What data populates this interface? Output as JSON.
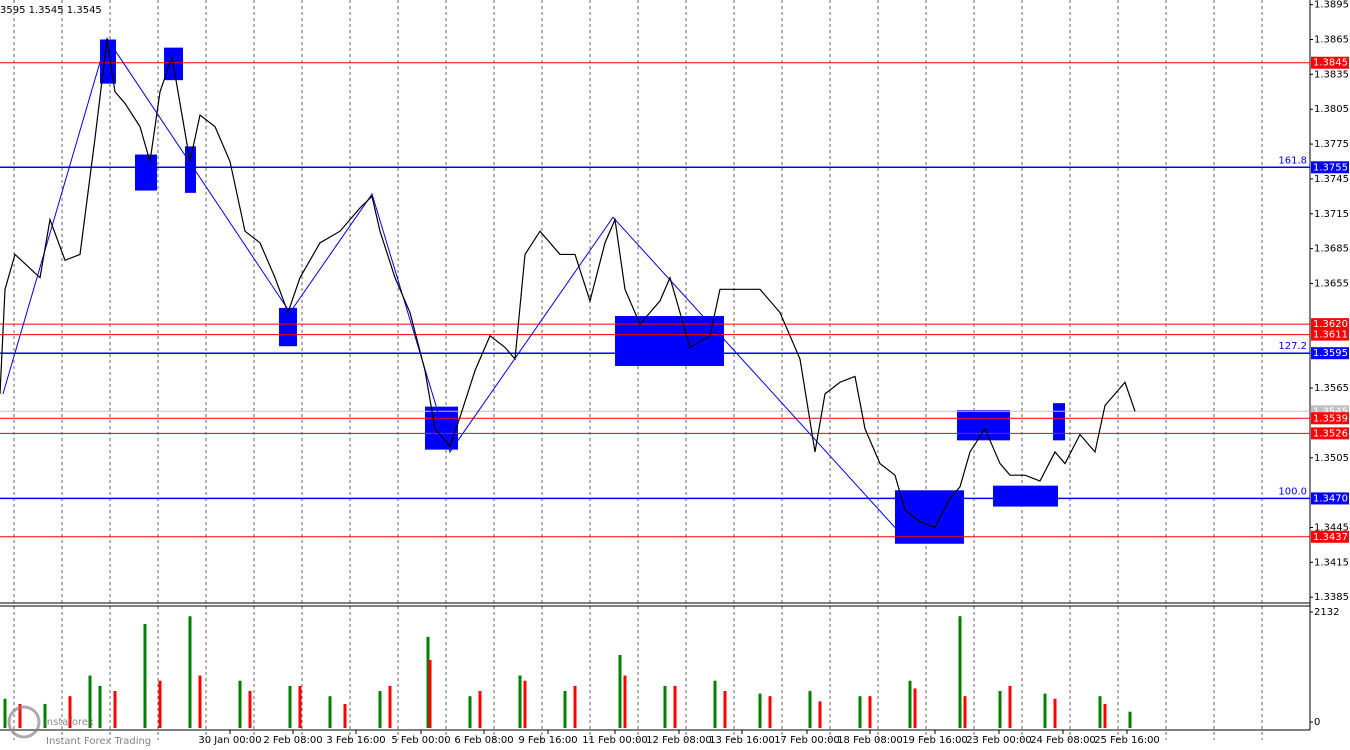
{
  "chart_data": {
    "type": "price-chart",
    "header": "3595 1.3545 1.3545",
    "ylim": [
      1.338,
      1.3899
    ],
    "yticks": [
      1.3895,
      1.3865,
      1.3835,
      1.3805,
      1.3775,
      1.3745,
      1.3715,
      1.3685,
      1.3655,
      1.3565,
      1.3505,
      1.3445,
      1.3415,
      1.3385
    ],
    "xlim": [
      0,
      131
    ],
    "xticks": [
      {
        "value": 23,
        "label": "30 Jan 00:00"
      },
      {
        "value": 29.3,
        "label": "2 Feb 08:00"
      },
      {
        "value": 35.6,
        "label": "3 Feb 16:00"
      },
      {
        "value": 42.1,
        "label": "5 Feb 00:00"
      },
      {
        "value": 48.4,
        "label": "6 Feb 08:00"
      },
      {
        "value": 54.8,
        "label": "9 Feb 16:00"
      },
      {
        "value": 61.5,
        "label": "11 Feb 00:00"
      },
      {
        "value": 67.9,
        "label": "12 Feb 08:00"
      },
      {
        "value": 74.2,
        "label": "13 Feb 16:00"
      },
      {
        "value": 80.7,
        "label": "17 Feb 00:00"
      },
      {
        "value": 87,
        "label": "18 Feb 08:00"
      },
      {
        "value": 93.5,
        "label": "19 Feb 16:00"
      },
      {
        "value": 99.9,
        "label": "23 Feb 00:00"
      },
      {
        "value": 106.3,
        "label": "24 Feb 08:00"
      },
      {
        "value": 112.7,
        "label": "25 Feb 16:00"
      }
    ],
    "price": {
      "color": "#000000",
      "x": [
        0,
        0.5,
        1.5,
        4,
        5,
        6.5,
        8,
        9.5,
        10.7,
        11.5,
        12.5,
        14,
        15,
        16,
        17.2,
        18,
        19,
        20,
        21.5,
        23,
        24.5,
        26,
        27.5,
        28.8,
        30,
        32,
        34,
        36,
        37.2,
        38,
        39.5,
        41,
        42.5,
        43.5,
        45,
        46,
        47.5,
        49,
        50.5,
        51.5,
        52.5,
        54,
        56,
        57.5,
        59,
        60.5,
        61.5,
        62.5,
        64,
        66,
        67,
        69,
        71,
        72,
        74,
        76,
        78,
        80,
        81.5,
        82.5,
        84,
        85.5,
        86.5,
        88,
        89.5,
        90.5,
        92,
        93.5,
        95,
        96,
        97,
        98.5,
        100,
        101,
        102.5,
        104,
        105.5,
        106.5,
        108,
        109.5,
        110.5,
        111.5,
        112.5,
        113.5
      ],
      "values": [
        1.356,
        1.365,
        1.368,
        1.366,
        1.371,
        1.3675,
        1.368,
        1.378,
        1.3865,
        1.382,
        1.381,
        1.379,
        1.376,
        1.382,
        1.385,
        1.381,
        1.376,
        1.38,
        1.379,
        1.376,
        1.37,
        1.369,
        1.366,
        1.363,
        1.366,
        1.369,
        1.37,
        1.372,
        1.373,
        1.37,
        1.366,
        1.363,
        1.358,
        1.353,
        1.3515,
        1.354,
        1.358,
        1.361,
        1.36,
        1.359,
        1.368,
        1.37,
        1.368,
        1.368,
        1.364,
        1.369,
        1.371,
        1.365,
        1.362,
        1.364,
        1.366,
        1.36,
        1.361,
        1.365,
        1.365,
        1.365,
        1.363,
        1.359,
        1.351,
        1.356,
        1.357,
        1.3575,
        1.353,
        1.35,
        1.349,
        1.346,
        1.345,
        1.3445,
        1.347,
        1.348,
        1.351,
        1.353,
        1.35,
        1.349,
        1.349,
        1.3485,
        1.351,
        1.35,
        1.3525,
        1.351,
        1.355,
        1.356,
        1.357,
        1.3545
      ]
    },
    "wave": {
      "color": "#0000ff",
      "x": [
        0.3,
        10.7,
        29,
        37.2,
        45,
        61.3,
        89.5
      ],
      "values": [
        1.356,
        1.3866,
        1.363,
        1.3732,
        1.351,
        1.3712,
        1.3445
      ]
    },
    "zones": [
      {
        "x": [
          10,
          11.6
        ],
        "y": [
          1.3827,
          1.3865
        ]
      },
      {
        "x": [
          16.4,
          18.3
        ],
        "y": [
          1.383,
          1.3858
        ]
      },
      {
        "x": [
          13.5,
          15.7
        ],
        "y": [
          1.3735,
          1.3766
        ]
      },
      {
        "x": [
          18.5,
          19.6
        ],
        "y": [
          1.3733,
          1.3773
        ]
      },
      {
        "x": [
          27.9,
          29.7
        ],
        "y": [
          1.3601,
          1.3634
        ]
      },
      {
        "x": [
          42.5,
          45.8
        ],
        "y": [
          1.3512,
          1.3549
        ]
      },
      {
        "x": [
          61.5,
          72.4
        ],
        "y": [
          1.3584,
          1.3627
        ]
      },
      {
        "x": [
          89.5,
          96.4
        ],
        "y": [
          1.3431,
          1.3477
        ]
      },
      {
        "x": [
          95.7,
          101
        ],
        "y": [
          1.352,
          1.3546
        ]
      },
      {
        "x": [
          99.3,
          105.8
        ],
        "y": [
          1.3463,
          1.3481
        ]
      },
      {
        "x": [
          105.3,
          106.5
        ],
        "y": [
          1.352,
          1.3552
        ]
      }
    ],
    "zone_color": "#0000ff",
    "levels": [
      {
        "value": 1.3845,
        "label": "1.3845",
        "color": "#ff0000"
      },
      {
        "value": 1.3755,
        "label": "1.3755",
        "color": "#0000ff",
        "fib": "161.8"
      },
      {
        "value": 1.362,
        "label": "1.3620",
        "color": "#ff0000"
      },
      {
        "value": 1.3611,
        "label": "1.3611",
        "color": "#ff0000"
      },
      {
        "value": 1.3595,
        "label": "1.3595",
        "color": "#0000ff",
        "fib": "127.2"
      },
      {
        "value": 1.3545,
        "label": "1.3545",
        "color": "#c0c0c0"
      },
      {
        "value": 1.3539,
        "label": "1.3539",
        "color": "#ff0000"
      },
      {
        "value": 1.3526,
        "label": "1.3526",
        "color": "#ff0000"
      },
      {
        "value": 1.347,
        "label": "1.3470",
        "color": "#0000ff",
        "fib": "100.0"
      },
      {
        "value": 1.3437,
        "label": "1.3437",
        "color": "#ff0000"
      }
    ],
    "volume": {
      "ylim": [
        0,
        2132
      ],
      "yticks": [
        2132,
        0
      ],
      "series": [
        {
          "color": "#008000",
          "x": [
            0.5,
            4.5,
            9,
            10,
            14.5,
            19,
            24,
            29,
            33,
            38,
            42.8,
            47,
            52,
            56.5,
            62,
            66.5,
            71.5,
            76,
            81,
            86,
            91,
            96,
            100,
            104.5,
            110,
            113
          ],
          "values": [
            450,
            350,
            900,
            700,
            1900,
            2050,
            800,
            700,
            500,
            600,
            1650,
            500,
            900,
            600,
            1300,
            700,
            800,
            550,
            600,
            500,
            800,
            2050,
            600,
            550,
            500,
            200
          ]
        },
        {
          "color": "#ff0000",
          "x": [
            2,
            7,
            11.5,
            16,
            20,
            25,
            30,
            34.5,
            39,
            43,
            48,
            52.5,
            57.5,
            62.5,
            67.5,
            72.5,
            77,
            82,
            87,
            91.5,
            96.5,
            101,
            105.5,
            110.5
          ],
          "values": [
            350,
            500,
            600,
            800,
            900,
            600,
            700,
            350,
            700,
            1200,
            600,
            800,
            700,
            900,
            700,
            600,
            500,
            400,
            500,
            650,
            500,
            700,
            450,
            350
          ]
        }
      ]
    },
    "watermark": {
      "brand": "instaforex",
      "tagline": "Instant Forex Trading"
    }
  }
}
